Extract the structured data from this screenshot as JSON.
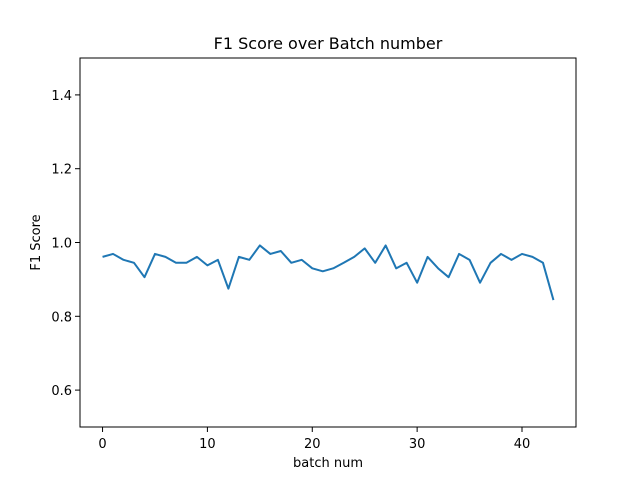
{
  "chart_data": {
    "type": "line",
    "title": "F1 Score over Batch number",
    "xlabel": "batch num",
    "ylabel": "F1 Score",
    "xlim": [
      -2.15,
      45.15
    ],
    "ylim": [
      0.5,
      1.5
    ],
    "xticks": [
      0,
      10,
      20,
      30,
      40
    ],
    "yticks": [
      0.6,
      0.8,
      1.0,
      1.2,
      1.4
    ],
    "xtick_labels": [
      "0",
      "10",
      "20",
      "30",
      "40"
    ],
    "ytick_labels": [
      "0.6",
      "0.8",
      "1.0",
      "1.2",
      "1.4"
    ],
    "grid": false,
    "series": [
      {
        "color": "#1f77b4",
        "x": [
          0,
          1,
          2,
          3,
          4,
          5,
          6,
          7,
          8,
          9,
          10,
          11,
          12,
          13,
          14,
          15,
          16,
          17,
          18,
          19,
          20,
          21,
          22,
          23,
          24,
          25,
          26,
          27,
          28,
          29,
          30,
          31,
          32,
          33,
          34,
          35,
          36,
          37,
          38,
          39,
          40,
          41,
          42,
          43
        ],
        "values": [
          0.961,
          0.969,
          0.953,
          0.945,
          0.906,
          0.969,
          0.961,
          0.945,
          0.945,
          0.961,
          0.938,
          0.953,
          0.875,
          0.961,
          0.953,
          0.992,
          0.969,
          0.977,
          0.945,
          0.953,
          0.93,
          0.922,
          0.93,
          0.945,
          0.961,
          0.984,
          0.945,
          0.992,
          0.93,
          0.945,
          0.891,
          0.961,
          0.93,
          0.906,
          0.969,
          0.953,
          0.891,
          0.945,
          0.969,
          0.953,
          0.969,
          0.961,
          0.945,
          0.844
        ]
      }
    ]
  }
}
